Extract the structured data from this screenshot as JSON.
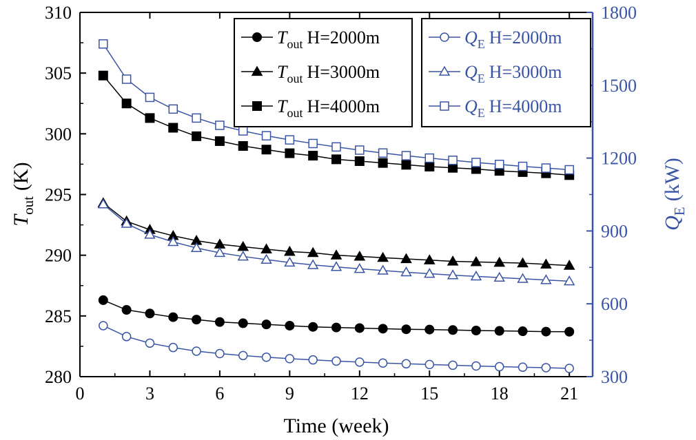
{
  "chart_data": {
    "type": "line",
    "xlabel": "Time (week)",
    "ylabel_left": {
      "symbol": "T",
      "sub": "out",
      "unit": "(K)"
    },
    "ylabel_right": {
      "symbol": "Q",
      "sub": "E",
      "unit": "(kW)"
    },
    "xlim": [
      0,
      22
    ],
    "xticks": [
      0,
      3,
      6,
      9,
      12,
      15,
      18,
      21
    ],
    "ylim_left": [
      280,
      310
    ],
    "yticks_left": [
      280,
      285,
      290,
      295,
      300,
      305,
      310
    ],
    "ylim_right": [
      300,
      1800
    ],
    "yticks_right": [
      300,
      600,
      900,
      1200,
      1500,
      1800
    ],
    "x": [
      1,
      2,
      3,
      4,
      5,
      6,
      7,
      8,
      9,
      10,
      11,
      12,
      13,
      14,
      15,
      16,
      17,
      18,
      19,
      20,
      21
    ],
    "colors": {
      "left": "#000000",
      "right": "#3a54a4"
    },
    "series": [
      {
        "name": "T_out H=2000m",
        "symbol": "T",
        "sub": "out",
        "label": "H=2000m",
        "axis": "left",
        "marker": "circle",
        "filled": true,
        "values": [
          286.3,
          285.5,
          285.2,
          284.9,
          284.7,
          284.5,
          284.4,
          284.3,
          284.2,
          284.1,
          284.05,
          284.0,
          283.95,
          283.9,
          283.88,
          283.84,
          283.8,
          283.77,
          283.74,
          283.71,
          283.7
        ]
      },
      {
        "name": "T_out H=3000m",
        "symbol": "T",
        "sub": "out",
        "label": "H=3000m",
        "axis": "left",
        "marker": "triangle",
        "filled": true,
        "values": [
          294.3,
          292.8,
          292.1,
          291.6,
          291.2,
          290.9,
          290.7,
          290.5,
          290.3,
          290.2,
          290.0,
          289.9,
          289.8,
          289.7,
          289.6,
          289.5,
          289.45,
          289.4,
          289.35,
          289.25,
          289.15
        ]
      },
      {
        "name": "T_out H=4000m",
        "symbol": "T",
        "sub": "out",
        "label": "H=4000m",
        "axis": "left",
        "marker": "square",
        "filled": true,
        "values": [
          304.8,
          302.5,
          301.3,
          300.5,
          299.8,
          299.4,
          299.0,
          298.7,
          298.4,
          298.2,
          297.9,
          297.75,
          297.6,
          297.45,
          297.3,
          297.2,
          297.1,
          296.95,
          296.85,
          296.75,
          296.6
        ]
      },
      {
        "name": "Q_E H=2000m",
        "symbol": "Q",
        "sub": "E",
        "label": "H=2000m",
        "axis": "right",
        "marker": "circle",
        "filled": false,
        "values": [
          510,
          465,
          438,
          420,
          405,
          395,
          387,
          380,
          374,
          369,
          364,
          360,
          356,
          353,
          350,
          347,
          344,
          341,
          339,
          337,
          334
        ]
      },
      {
        "name": "Q_E H=3000m",
        "symbol": "Q",
        "sub": "E",
        "label": "H=3000m",
        "axis": "right",
        "marker": "triangle",
        "filled": false,
        "values": [
          1010,
          930,
          885,
          855,
          830,
          810,
          795,
          782,
          770,
          760,
          752,
          744,
          737,
          730,
          724,
          718,
          713,
          708,
          703,
          698,
          693
        ]
      },
      {
        "name": "Q_E H=4000m",
        "symbol": "Q",
        "sub": "E",
        "label": "H=4000m",
        "axis": "right",
        "marker": "square",
        "filled": false,
        "values": [
          1670,
          1525,
          1450,
          1402,
          1365,
          1335,
          1312,
          1292,
          1275,
          1260,
          1246,
          1233,
          1221,
          1210,
          1200,
          1191,
          1182,
          1174,
          1166,
          1159,
          1152
        ]
      }
    ],
    "legends": [
      {
        "placement": "top-center",
        "series": [
          0,
          1,
          2
        ]
      },
      {
        "placement": "top-right",
        "series": [
          3,
          4,
          5
        ]
      }
    ]
  }
}
